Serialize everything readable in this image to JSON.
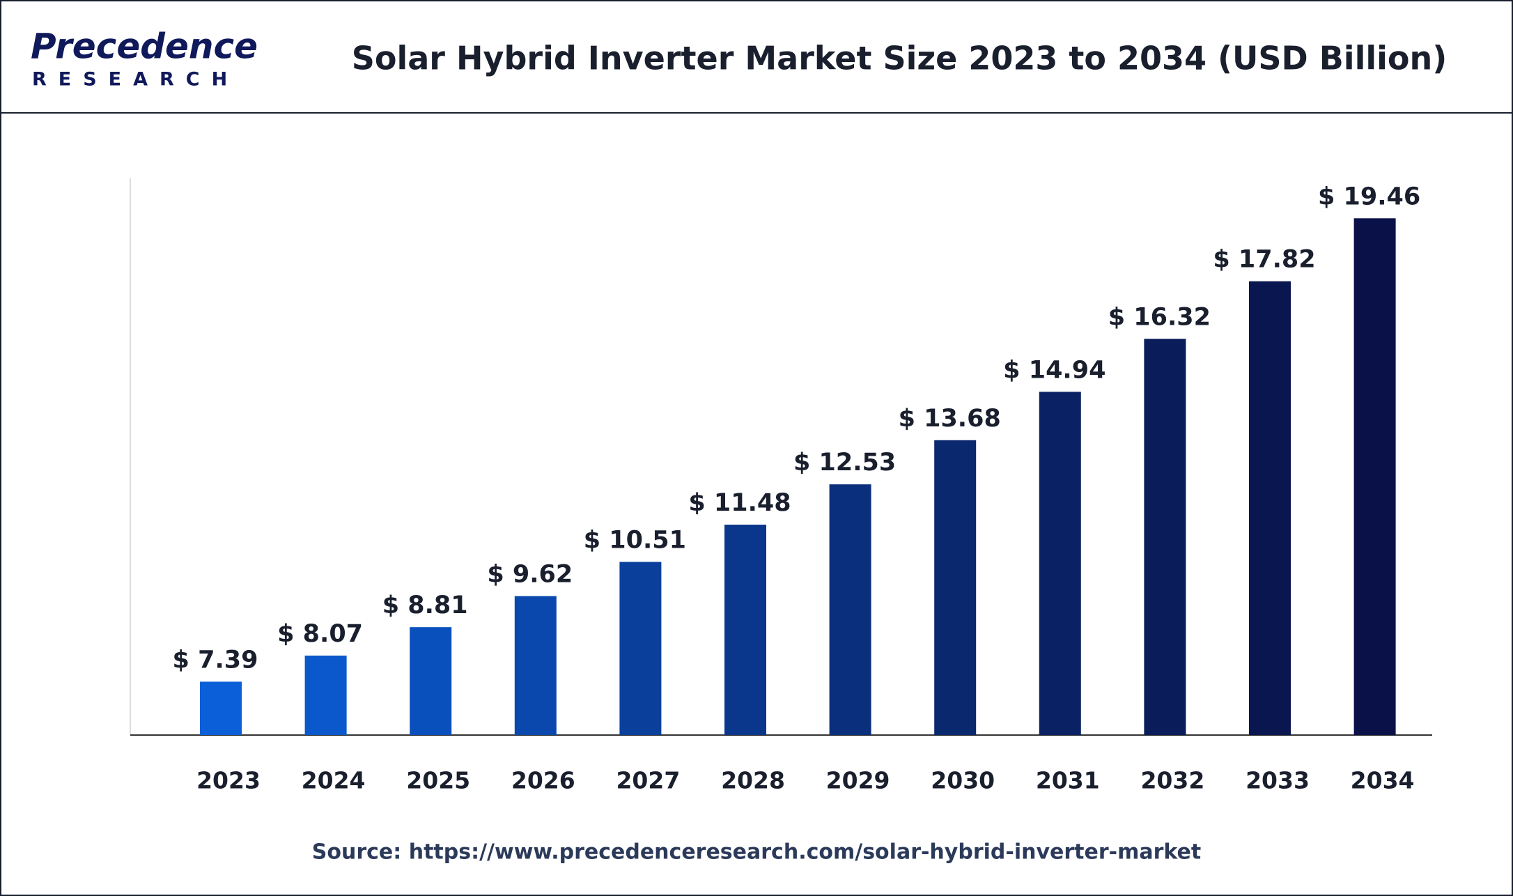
{
  "logo": {
    "name": "Precedence",
    "sub": "RESEARCH"
  },
  "chart_data": {
    "type": "bar",
    "title": "Solar Hybrid Inverter Market Size 2023 to 2034 (USD Billion)",
    "categories": [
      "2023",
      "2024",
      "2025",
      "2026",
      "2027",
      "2028",
      "2029",
      "2030",
      "2031",
      "2032",
      "2033",
      "2034"
    ],
    "values": [
      7.39,
      8.07,
      8.81,
      9.62,
      10.51,
      11.48,
      12.53,
      13.68,
      14.94,
      16.32,
      17.82,
      19.46
    ],
    "value_labels": [
      "$ 7.39",
      "$ 8.07",
      "$ 8.81",
      "$ 9.62",
      "$ 10.51",
      "$ 11.48",
      "$ 12.53",
      "$ 13.68",
      "$ 14.94",
      "$ 16.32",
      "$ 17.82",
      "$ 19.46"
    ],
    "colors": [
      "#0b5fd9",
      "#0a58cc",
      "#0a50bd",
      "#0a48ad",
      "#0a3f9c",
      "#0a378c",
      "#0a2f7c",
      "#0a286e",
      "#0a2263",
      "#0a1c59",
      "#0a1650",
      "#0a1148"
    ],
    "ylim": [
      6,
      20.5
    ],
    "source": "Source: https://www.precedenceresearch.com/solar-hybrid-inverter-market"
  }
}
